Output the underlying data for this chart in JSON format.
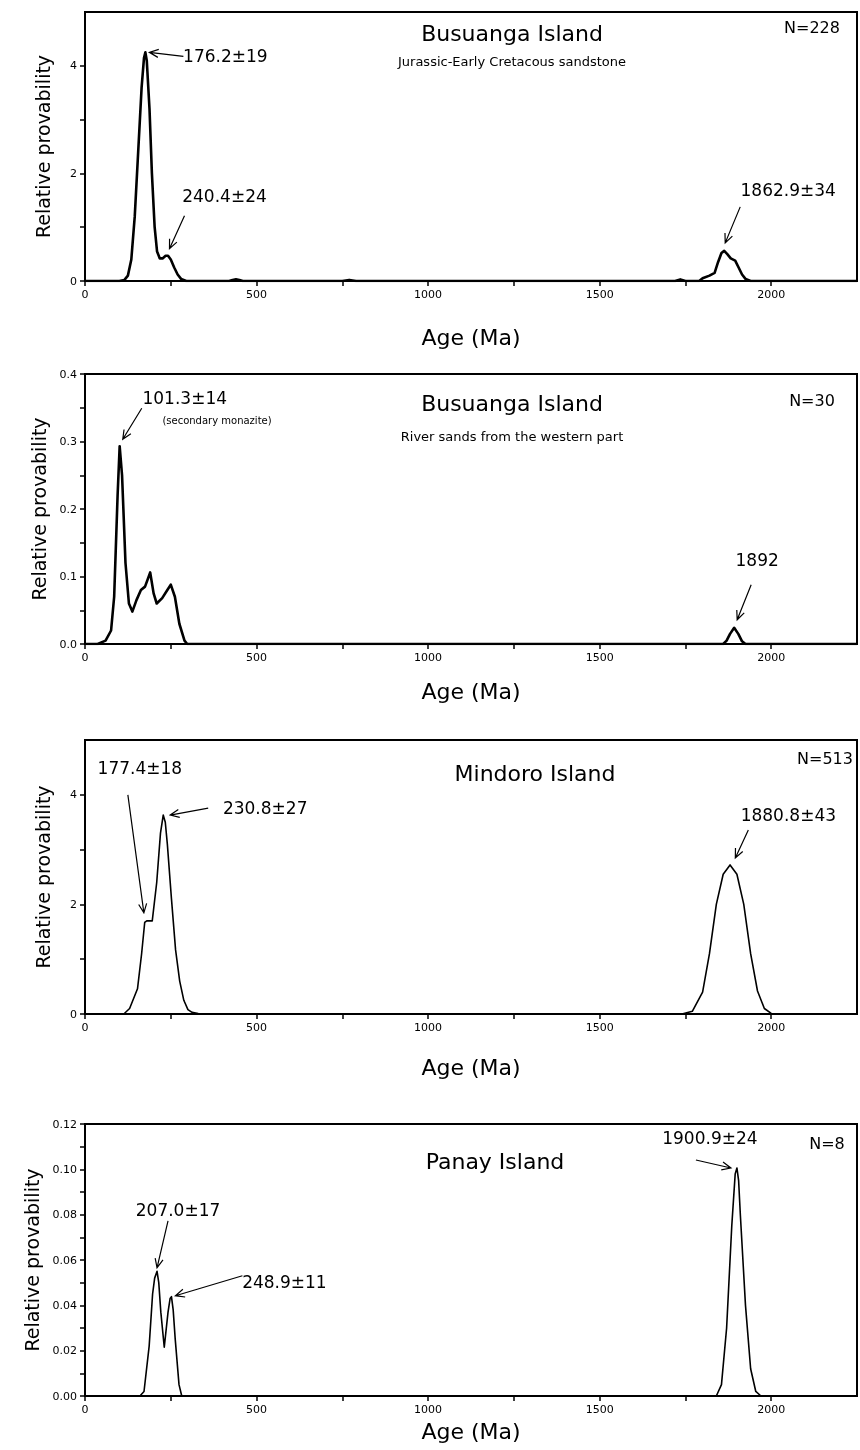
{
  "chart_data": [
    {
      "type": "line",
      "title": "Busuanga Island",
      "subtitle": "Jurassic-Early Cretacous sandstone",
      "xlabel": "Age (Ma)",
      "ylabel": "Relative provability",
      "color": "#000000",
      "x": [
        0,
        100,
        115,
        125,
        135,
        145,
        155,
        165,
        172,
        176,
        180,
        188,
        195,
        203,
        210,
        218,
        226,
        235,
        242,
        250,
        260,
        270,
        280,
        295,
        420,
        430,
        440,
        450,
        460,
        750,
        770,
        790,
        1720,
        1735,
        1750,
        1790,
        1800,
        1820,
        1835,
        1845,
        1855,
        1863,
        1872,
        1882,
        1895,
        1905,
        1915,
        1925,
        1940,
        2250
      ],
      "values": [
        0,
        0,
        0.02,
        0.1,
        0.4,
        1.2,
        2.4,
        3.6,
        4.15,
        4.25,
        4.1,
        3.2,
        2.0,
        1.0,
        0.55,
        0.42,
        0.42,
        0.47,
        0.47,
        0.4,
        0.25,
        0.12,
        0.04,
        0,
        0,
        0.02,
        0.03,
        0.02,
        0,
        0,
        0.02,
        0,
        0,
        0.03,
        0,
        0,
        0.05,
        0.1,
        0.15,
        0.35,
        0.52,
        0.56,
        0.5,
        0.42,
        0.38,
        0.25,
        0.12,
        0.04,
        0,
        0
      ],
      "xlim": [
        0,
        2250
      ],
      "xticks": [
        0,
        {
          "value": 250,
          "label": null
        },
        500,
        {
          "value": 750,
          "label": null
        },
        1000,
        {
          "value": 1250,
          "label": null
        },
        1500,
        {
          "value": 1750,
          "label": null
        },
        2000
      ],
      "ylim": [
        0,
        5
      ],
      "yticks": [
        0,
        {
          "value": 1,
          "label": null
        },
        2,
        {
          "value": 3,
          "label": null
        },
        4
      ],
      "annotations": [
        {
          "text": "176.2±19",
          "x": 176,
          "y": 4.25
        },
        {
          "text": "240.4±24",
          "x": 240.4,
          "y": 0.47
        },
        {
          "text": "1862.9±34",
          "x": 1863,
          "y": 0.56
        },
        "N=228"
      ]
    },
    {
      "type": "line",
      "title": "Busuanga Island",
      "subtitle": "River sands from the western part",
      "xlabel": "Age (Ma)",
      "ylabel": "Relative provability",
      "color": "#000000",
      "x": [
        0,
        37,
        60,
        76,
        85,
        95,
        101,
        108,
        118,
        128,
        138,
        150,
        163,
        175,
        190,
        200,
        209,
        225,
        240,
        250,
        262,
        275,
        290,
        298,
        1860,
        1870,
        1880,
        1892,
        1904,
        1915,
        1925,
        2250
      ],
      "values": [
        0,
        0,
        0.005,
        0.02,
        0.07,
        0.22,
        0.293,
        0.25,
        0.12,
        0.06,
        0.048,
        0.065,
        0.08,
        0.085,
        0.106,
        0.075,
        0.06,
        0.068,
        0.08,
        0.088,
        0.07,
        0.03,
        0.005,
        0,
        0,
        0.005,
        0.015,
        0.024,
        0.015,
        0.004,
        0,
        0
      ],
      "xlim": [
        0,
        2250
      ],
      "xticks": [
        0,
        {
          "value": 250,
          "label": null
        },
        500,
        {
          "value": 750,
          "label": null
        },
        1000,
        {
          "value": 1250,
          "label": null
        },
        1500,
        {
          "value": 1750,
          "label": null
        },
        2000
      ],
      "ylim": [
        0,
        0.4
      ],
      "yticks": [
        {
          "value": 0,
          "label": "0.0"
        },
        {
          "value": 0.05,
          "label": null
        },
        0.1,
        {
          "value": 0.15,
          "label": null
        },
        0.2,
        {
          "value": 0.25,
          "label": null
        },
        0.3,
        {
          "value": 0.35,
          "label": null
        },
        0.4
      ],
      "annotations": [
        {
          "text": "101.3±14",
          "x": 101.3,
          "y": 0.293
        },
        "(secondary monazite)",
        {
          "text": "1892",
          "x": 1892,
          "y": 0.024
        },
        "N=30"
      ]
    },
    {
      "type": "line",
      "title": "Mindoro Island",
      "xlabel": "Age (Ma)",
      "ylabel": "Relative provability",
      "color": "#000000",
      "x": [
        0,
        100,
        113,
        130,
        153,
        165,
        174,
        180,
        196,
        209,
        220,
        228,
        234,
        240,
        252,
        264,
        276,
        288,
        300,
        312,
        330,
        350,
        1740,
        1770,
        1800,
        1820,
        1840,
        1860,
        1880,
        1900,
        1920,
        1940,
        1960,
        1980,
        2000,
        2020,
        2250
      ],
      "values": [
        0,
        0,
        0,
        0.1,
        0.46,
        1.1,
        1.67,
        1.7,
        1.7,
        2.4,
        3.3,
        3.63,
        3.5,
        3.1,
        2.1,
        1.17,
        0.6,
        0.25,
        0.08,
        0.03,
        0.01,
        0,
        0,
        0.05,
        0.4,
        1.1,
        2.0,
        2.55,
        2.72,
        2.55,
        2.0,
        1.1,
        0.42,
        0.1,
        0.01,
        0,
        0
      ],
      "xlim": [
        0,
        2250
      ],
      "xticks": [
        0,
        {
          "value": 250,
          "label": null
        },
        500,
        {
          "value": 750,
          "label": null
        },
        1000,
        {
          "value": 1250,
          "label": null
        },
        1500,
        {
          "value": 1750,
          "label": null
        },
        2000
      ],
      "ylim": [
        0,
        5
      ],
      "yticks": [
        0,
        {
          "value": 1,
          "label": null
        },
        2,
        {
          "value": 3,
          "label": null
        },
        4
      ],
      "annotations": [
        {
          "text": "177.4±18",
          "x": 177.4,
          "y": 1.7
        },
        {
          "text": "230.8±27",
          "x": 230.8,
          "y": 3.63
        },
        {
          "text": "1880.8±43",
          "x": 1880.8,
          "y": 2.72
        },
        "N=513"
      ]
    },
    {
      "type": "line",
      "title": "Panay Island",
      "xlabel": "Age (Ma)",
      "ylabel": "Relative provability",
      "color": "#000000",
      "x": [
        0,
        160,
        172,
        187,
        197,
        203,
        210,
        215,
        221,
        231,
        242,
        248,
        252,
        257,
        263,
        274,
        282,
        1840,
        1855,
        1870,
        1885,
        1895,
        1900,
        1905,
        1910,
        1925,
        1940,
        1955,
        1970,
        2250
      ],
      "values": [
        0,
        0,
        0.002,
        0.022,
        0.045,
        0.052,
        0.055,
        0.05,
        0.037,
        0.0215,
        0.037,
        0.043,
        0.0438,
        0.038,
        0.025,
        0.005,
        0,
        0,
        0.005,
        0.03,
        0.075,
        0.098,
        0.1006,
        0.095,
        0.08,
        0.04,
        0.012,
        0.002,
        0,
        0
      ],
      "xlim": [
        0,
        2250
      ],
      "xticks": [
        0,
        {
          "value": 250,
          "label": null
        },
        500,
        {
          "value": 750,
          "label": null
        },
        1000,
        {
          "value": 1250,
          "label": null
        },
        1500,
        {
          "value": 1750,
          "label": null
        },
        2000
      ],
      "ylim": [
        0,
        0.12
      ],
      "yticks": [
        {
          "value": 0,
          "label": "0.00"
        },
        {
          "value": 0.01,
          "label": null
        },
        0.02,
        {
          "value": 0.03,
          "label": null
        },
        0.04,
        {
          "value": 0.05,
          "label": null
        },
        0.06,
        {
          "value": 0.07,
          "label": null
        },
        0.08,
        {
          "value": 0.09,
          "label": null
        },
        {
          "value": 0.1,
          "label": "0.10"
        },
        {
          "value": 0.11,
          "label": null
        },
        0.12
      ],
      "annotations": [
        {
          "text": "207.0±17",
          "x": 207,
          "y": 0.0548
        },
        {
          "text": "248.9±11",
          "x": 248.9,
          "y": 0.0438
        },
        {
          "text": "1900.9±24",
          "x": 1900,
          "y": 0.1006
        },
        "N=8"
      ]
    }
  ]
}
